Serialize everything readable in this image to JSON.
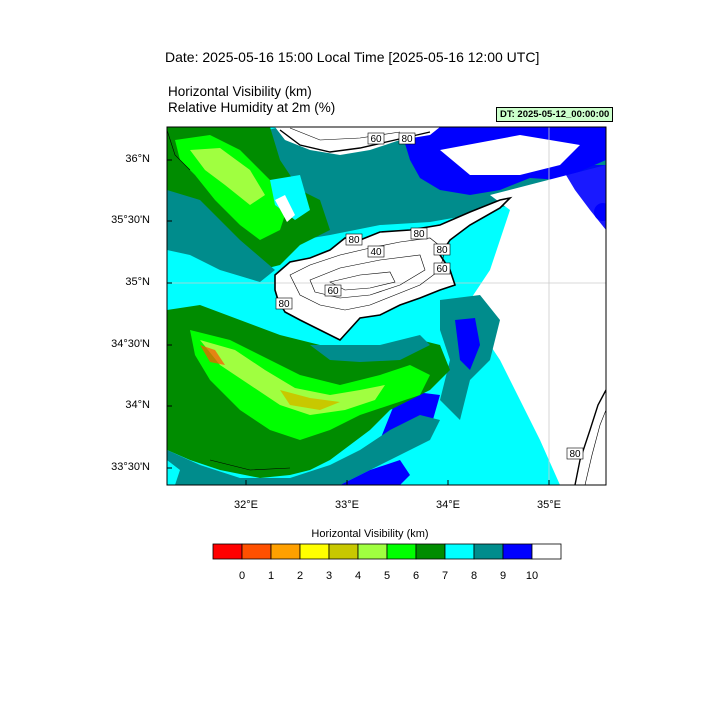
{
  "title": {
    "date_line": "Date: 2025-05-16  15:00 Local Time [2025-05-16  12:00 UTC]",
    "field1": "Horizontal Visibility   (km)",
    "field2": "Relative Humidity at 2m   (%)"
  },
  "dt_badge": "DT: 2025-05-12_00:00:00",
  "axes": {
    "lat_labels": [
      "36°N",
      "35°30'N",
      "35°N",
      "34°30'N",
      "34°N",
      "33°30'N"
    ],
    "lon_labels": [
      "32°E",
      "33°E",
      "34°E",
      "35°E"
    ]
  },
  "contour_labels": [
    "60",
    "80",
    "80",
    "40",
    "60",
    "80",
    "80",
    "60",
    "80",
    "80"
  ],
  "colorbar": {
    "title": "Horizontal Visibility  (km)",
    "colors": [
      "#ff0000",
      "#ff5000",
      "#ffa000",
      "#ffff00",
      "#c8c800",
      "#a0ff40",
      "#00ff00",
      "#008c00",
      "#00ffff",
      "#008c8c",
      "#0000ff",
      "#ffffff"
    ],
    "labels": [
      "0",
      "1",
      "2",
      "3",
      "4",
      "5",
      "6",
      "7",
      "8",
      "9",
      "10"
    ]
  }
}
